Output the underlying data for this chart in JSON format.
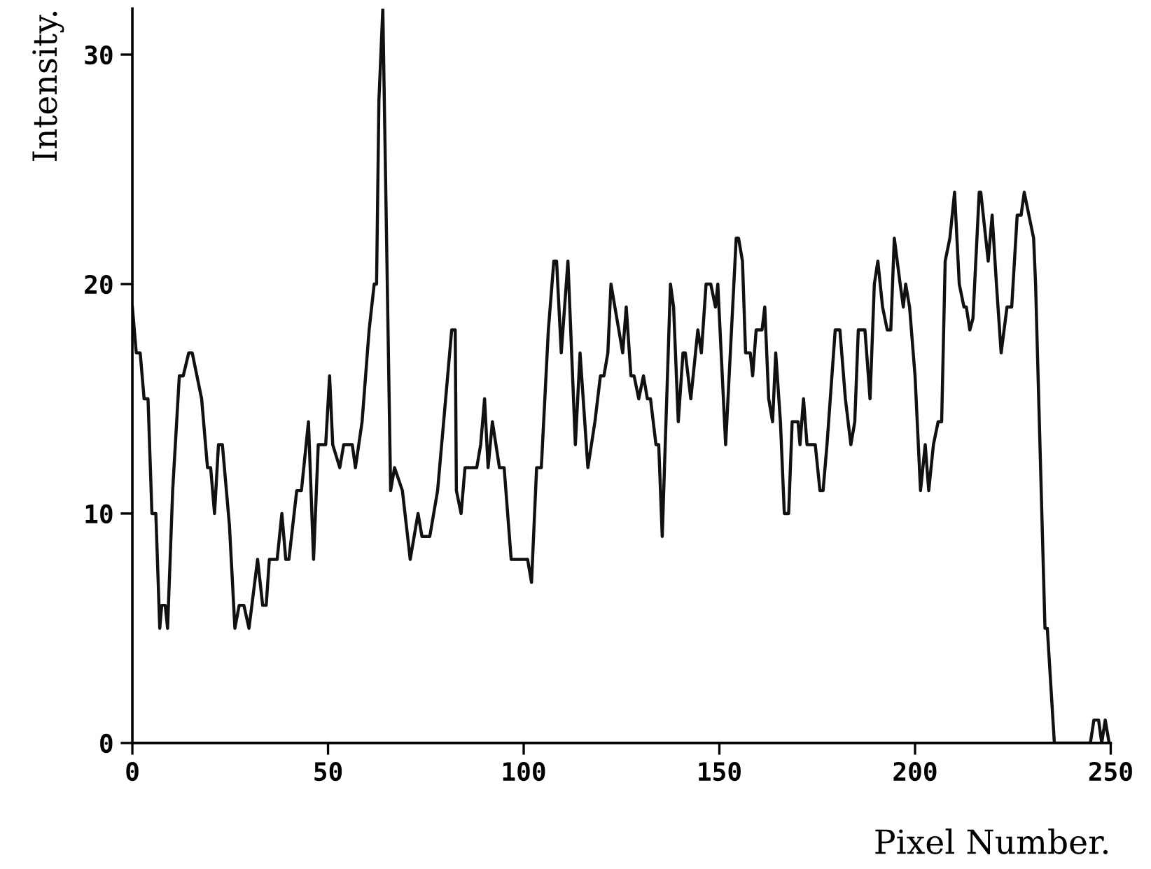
{
  "chart_data": {
    "type": "line",
    "xlabel": "Pixel Number.",
    "ylabel": "Intensity.",
    "xlim": [
      0,
      250
    ],
    "xticks": [
      0,
      50,
      100,
      150,
      200,
      250
    ],
    "ylim": [
      0,
      32
    ],
    "yticks": [
      0,
      10,
      20,
      30
    ],
    "grid": false,
    "marker": "none",
    "line_style": "solid",
    "series": [
      {
        "color": "#111111",
        "x": [
          0,
          1,
          2,
          3,
          4,
          5,
          6,
          7,
          7.5,
          8.4,
          9,
          10.3,
          12,
          13,
          14.4,
          15.3,
          17.7,
          19.2,
          20,
          21,
          22,
          23,
          24.8,
          26.2,
          27.3,
          28.5,
          29.8,
          32,
          33.3,
          34.2,
          35,
          37,
          38.2,
          39.2,
          40,
          42,
          43.2,
          45,
          46.3,
          47.5,
          49.4,
          50.4,
          51.2,
          53,
          54,
          56.2,
          57,
          58.7,
          60.5,
          61.8,
          62.4,
          63,
          64,
          66,
          67,
          69,
          71,
          73,
          74,
          76,
          78,
          81.6,
          82.5,
          82.8,
          84,
          85,
          88,
          89,
          90,
          90.9,
          92,
          93.8,
          95,
          96.8,
          101,
          102,
          103.3,
          104.5,
          106.3,
          107.7,
          108.4,
          109.6,
          111.3,
          113.2,
          114.4,
          116.4,
          118.2,
          119.6,
          120.5,
          121.5,
          122.3,
          125.3,
          126.2,
          127.4,
          128.2,
          129.4,
          130.6,
          131.6,
          132.4,
          133.8,
          134.5,
          135.4,
          137.5,
          138.3,
          139.5,
          140.7,
          141.3,
          142.7,
          144.5,
          145.4,
          146.6,
          147.8,
          149,
          149.6,
          151.6,
          154.3,
          154.9,
          155.9,
          156.7,
          157.9,
          158.5,
          159.4,
          160.9,
          161.6,
          162.6,
          163.6,
          164.4,
          165.6,
          166.6,
          167.7,
          168.6,
          170.1,
          170.6,
          171.5,
          172.4,
          174.5,
          175.7,
          176.5,
          177.5,
          179.6,
          180.8,
          182.2,
          183.6,
          184.6,
          185.5,
          187.2,
          188.5,
          189.6,
          190.5,
          191.7,
          192.9,
          193.8,
          194.7,
          196.2,
          197,
          197.6,
          198.6,
          200,
          201.4,
          202.6,
          203.5,
          204.7,
          205.9,
          206.8,
          207.7,
          208.9,
          210.1,
          211.3,
          212.5,
          213.1,
          214,
          214.8,
          216.4,
          216.8,
          218.7,
          219.7,
          220.8,
          222,
          223.5,
          224.7,
          226.1,
          227.1,
          227.9,
          229.1,
          230.3,
          230.8,
          233.2,
          233.8,
          235.6,
          244.8,
          245.7,
          246.9,
          247.7,
          248.6,
          249.6
        ],
        "values": [
          19,
          17,
          17,
          15,
          15,
          10,
          10,
          5,
          6,
          6,
          5,
          11,
          16,
          16,
          17,
          17,
          15,
          12,
          12,
          10,
          13,
          13,
          9.5,
          5,
          6,
          6,
          5,
          8,
          6,
          6,
          8,
          8,
          10,
          8,
          8,
          11,
          11,
          14,
          8,
          13,
          13,
          16,
          13,
          12,
          13,
          13,
          12,
          14,
          18,
          20,
          20,
          28,
          32,
          11,
          12,
          11,
          8,
          10,
          9,
          9,
          11,
          18,
          18,
          11,
          10,
          12,
          12,
          13,
          15,
          12,
          14,
          12,
          12,
          8,
          8,
          7,
          12,
          12,
          18,
          21,
          21,
          17,
          21,
          13,
          17,
          12,
          14,
          16,
          16,
          17,
          20,
          17,
          19,
          16,
          16,
          15,
          16,
          15,
          15,
          13,
          13,
          9,
          20,
          19,
          14,
          17,
          17,
          15,
          18,
          17,
          20,
          20,
          19,
          20,
          13,
          22,
          22,
          21,
          17,
          17,
          16,
          18,
          18,
          19,
          15,
          14,
          17,
          14,
          10,
          10,
          14,
          14,
          13,
          15,
          13,
          13,
          11,
          11,
          13,
          18,
          18,
          15,
          13,
          14,
          18,
          18,
          15,
          20,
          21,
          19,
          18,
          18,
          22,
          20,
          19,
          20,
          19,
          16,
          11,
          13,
          11,
          13,
          14,
          14,
          21,
          22,
          24,
          20,
          19,
          19,
          18,
          18.5,
          24,
          24,
          21,
          23,
          20,
          17,
          19,
          19,
          23,
          23,
          24,
          23,
          22,
          20,
          5,
          5,
          0,
          0,
          1,
          1,
          0,
          1,
          0
        ]
      }
    ]
  }
}
